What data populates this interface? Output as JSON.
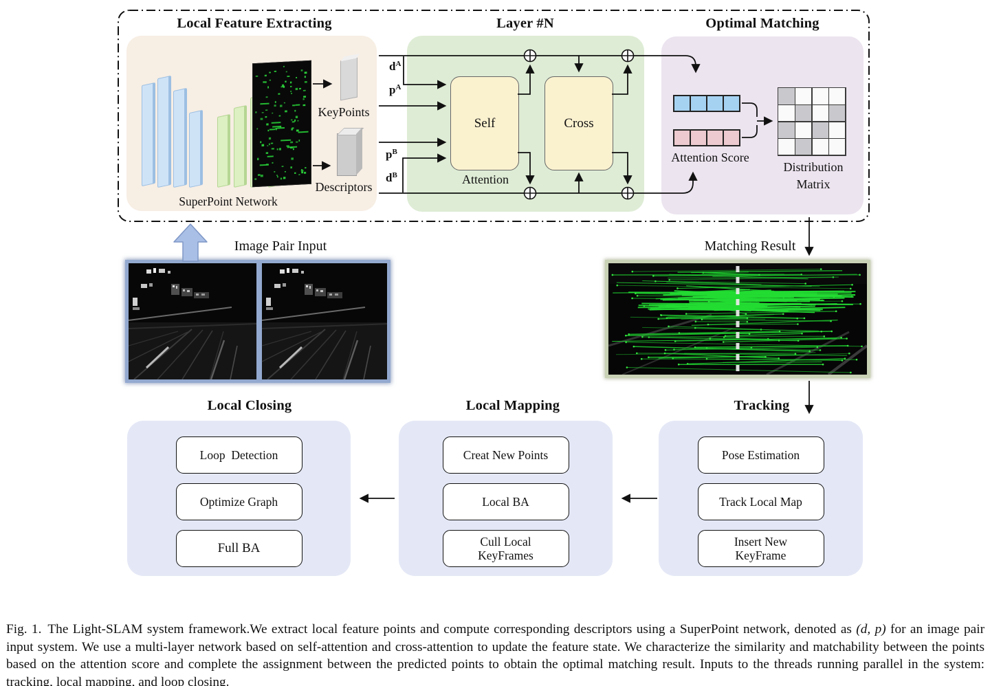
{
  "colors": {
    "beige": "#f7eee4",
    "green": "#deecd5",
    "yellow": "#faf1cf",
    "purple": "#ece4ef",
    "lavender": "#e4e8f6",
    "bluecell": "#a6d2f1",
    "pinkcell": "#eccacf",
    "graycell": "#c9c9cd",
    "slabblue": "#cfe3f7",
    "slabblueedge": "#9cbfe2",
    "slabgreen": "#dcf0c2",
    "slabgreenedge": "#b5d693",
    "arrowblue": "#aabfe5",
    "arrowblueedge": "#7e97c6",
    "frameblue": "#93a9cf",
    "framesage": "#c9d2b5",
    "line": "#111111",
    "matchgreen": "#1ecb2e"
  },
  "top": {
    "panels": {
      "feature": {
        "title": "Local Feature Extracting",
        "network": "SuperPoint Network",
        "keypoints": "KeyPoints",
        "descriptors": "Descriptors"
      },
      "layer": {
        "title": "Layer #N",
        "self": "Self",
        "cross": "Cross",
        "attention": "Attention",
        "signals": [
          {
            "base": "d",
            "sup": "A"
          },
          {
            "base": "p",
            "sup": "A"
          },
          {
            "base": "p",
            "sup": "B"
          },
          {
            "base": "d",
            "sup": "B"
          }
        ]
      },
      "matching": {
        "title": "Optimal Matching",
        "attention_score": "Attention Score",
        "distribution_matrix": "Distribution\nMatrix",
        "score_cells": 4,
        "matrix_pattern": [
          [
            1,
            0,
            0,
            0
          ],
          [
            0,
            1,
            0,
            1
          ],
          [
            1,
            0,
            1,
            0
          ],
          [
            0,
            1,
            0,
            0
          ]
        ]
      }
    }
  },
  "middle": {
    "image_pair_label": "Image Pair Input",
    "matching_result_label": "Matching Result"
  },
  "threads": [
    {
      "title": "Local Closing",
      "boxes": [
        "Loop  Detection",
        "Optimize Graph",
        "Full BA"
      ]
    },
    {
      "title": "Local Mapping",
      "boxes": [
        "Creat New Points",
        "Local BA",
        "Cull Local\nKeyFrames"
      ]
    },
    {
      "title": "Tracking",
      "boxes": [
        "Pose Estimation",
        "Track Local Map",
        "Insert New\nKeyFrame"
      ]
    }
  ],
  "caption": {
    "tag": "Fig. 1.",
    "before_math": "The Light-SLAM system framework.We extract local feature points and compute corresponding descriptors using a SuperPoint network, denoted as ",
    "math": "(d, p)",
    "after_math": " for an image pair input system. We use a multi-layer network based on self-attention and cross-attention to update the feature state. We characterize the similarity and matchability between the points based on the attention score and complete the assignment between the predicted points to obtain the optimal matching result. Inputs to the threads running parallel in the system: tracking, local mapping, and loop closing."
  }
}
